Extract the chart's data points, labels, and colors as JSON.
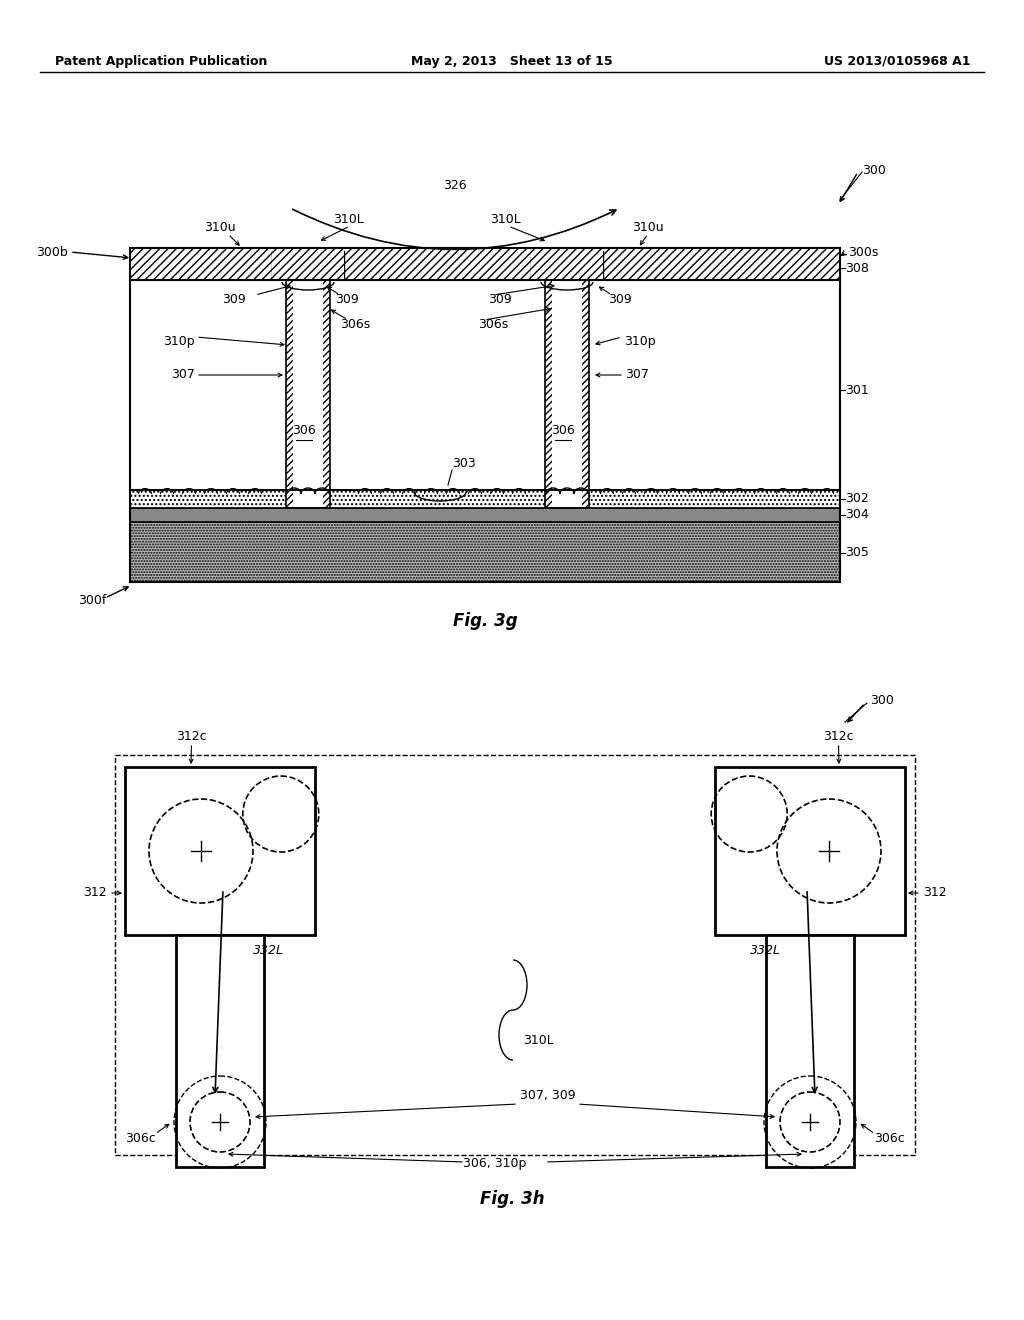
{
  "page_header": {
    "left": "Patent Application Publication",
    "center": "May 2, 2013   Sheet 13 of 15",
    "right": "US 2013/0105968 A1"
  },
  "fig3g_title": "Fig. 3g",
  "fig3h_title": "Fig. 3h",
  "colors": {
    "white": "#ffffff",
    "black": "#000000",
    "light_gray": "#cccccc",
    "dotted_gray": "#b0b0b0"
  }
}
